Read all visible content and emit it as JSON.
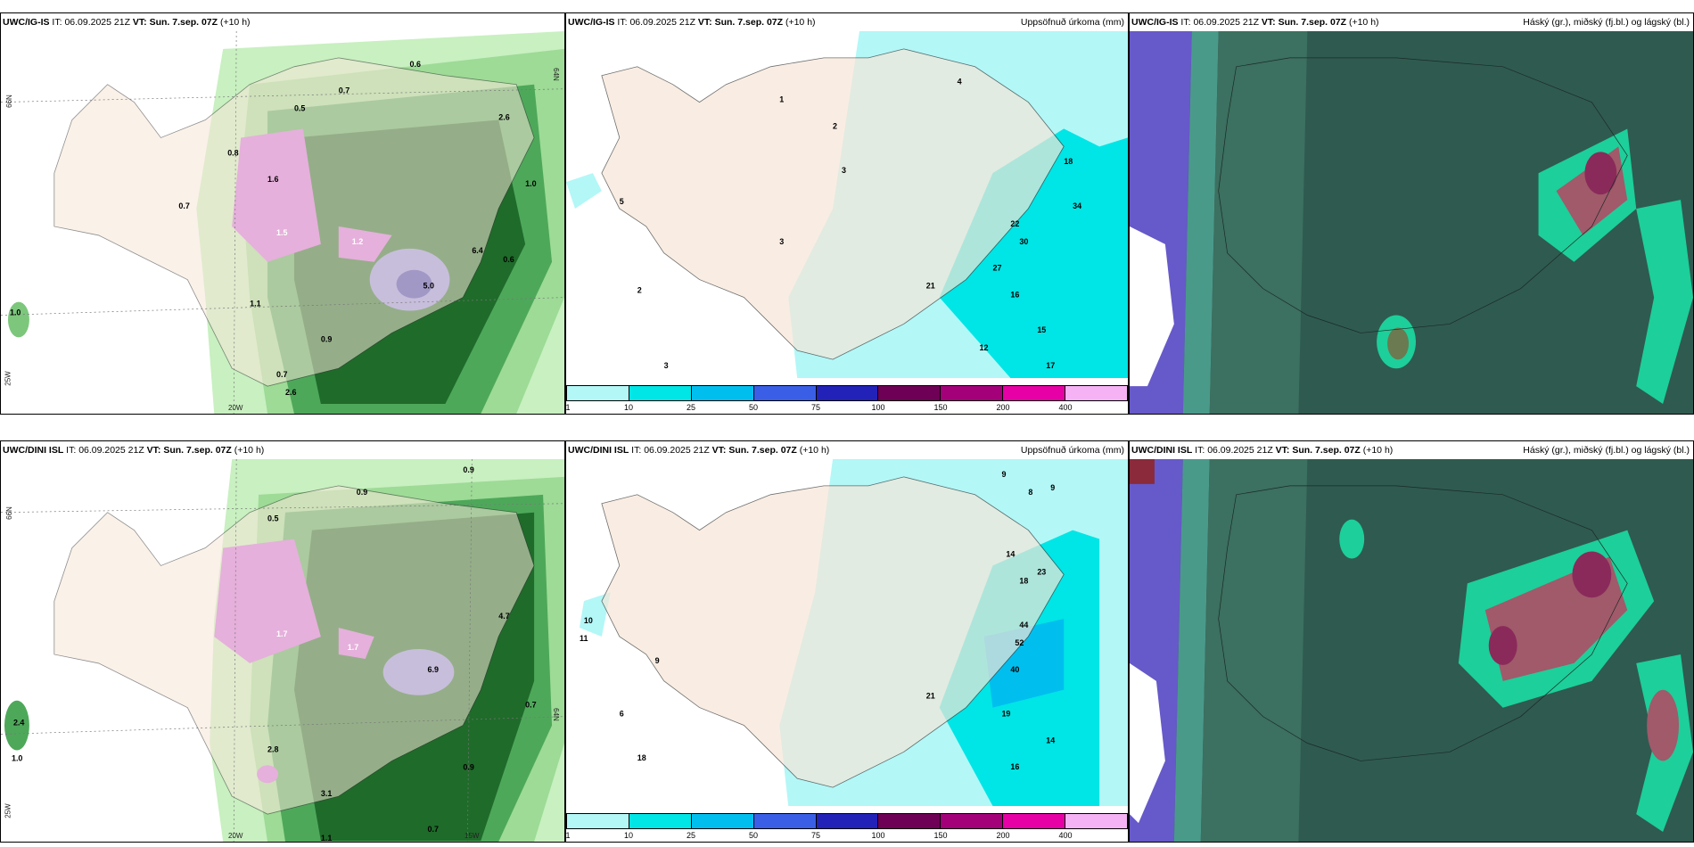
{
  "panels": {
    "top_left": {
      "model": "UWC/IG-IS",
      "it_label": "IT:",
      "it_value": "06.09.2025 21Z",
      "vt_label": "VT:",
      "vt_value": "Sun. 7.sep. 07Z",
      "lead": "(+10 h)",
      "right_title": ""
    },
    "top_mid": {
      "model": "UWC/IG-IS",
      "it_label": "IT:",
      "it_value": "06.09.2025 21Z",
      "vt_label": "VT:",
      "vt_value": "Sun. 7.sep. 07Z",
      "lead": "(+10 h)",
      "right_title": "Uppsöfnuð úrkoma (mm)"
    },
    "top_right": {
      "model": "UWC/IG-IS",
      "it_label": "IT:",
      "it_value": "06.09.2025 21Z",
      "vt_label": "VT:",
      "vt_value": "Sun. 7.sep. 07Z",
      "lead": "(+10 h)",
      "right_title": "Háský (gr.), miðský (fj.bl.) og lágský (bl.)"
    },
    "bot_left": {
      "model": "UWC/DINI ISL",
      "it_label": "IT:",
      "it_value": "06.09.2025 21Z",
      "vt_label": "VT:",
      "vt_value": "Sun. 7.sep. 07Z",
      "lead": "(+10 h)",
      "right_title": ""
    },
    "bot_mid": {
      "model": "UWC/DINI ISL",
      "it_label": "IT:",
      "it_value": "06.09.2025 21Z",
      "vt_label": "VT:",
      "vt_value": "Sun. 7.sep. 07Z",
      "lead": "(+10 h)",
      "right_title": "Uppsöfnuð úrkoma (mm)"
    },
    "bot_right": {
      "model": "UWC/DINI ISL",
      "it_label": "IT:",
      "it_value": "06.09.2025 21Z",
      "vt_label": "VT:",
      "vt_value": "Sun. 7.sep. 07Z",
      "lead": "(+10 h)",
      "right_title": "Háský (gr.), miðský (fj.bl.) og lágský (bl.)"
    }
  },
  "axis_labels": {
    "lat_66": "66N",
    "lat_64": "64N",
    "lon_25": "25W",
    "lon_20": "20W",
    "lon_15": "15W"
  },
  "colorbar": {
    "ticks": [
      "1",
      "10",
      "25",
      "50",
      "75",
      "100",
      "150",
      "200",
      "400"
    ],
    "colors": [
      "#b3f7f7",
      "#00e5e5",
      "#00bfef",
      "#3a5fe6",
      "#2222b8",
      "#6e0055",
      "#a3007a",
      "#e600a6",
      "#f5b3f5"
    ]
  },
  "colors": {
    "land": "#f7e6d8",
    "sea": "#ffffff",
    "green_light": "#c8f0c0",
    "green_mid": "#7cc77c",
    "green_dark": "#1f6b2a",
    "violet": "#d070e0",
    "cloud_bg": "#2f5a50",
    "cloud_low": "#6659c9"
  }
}
